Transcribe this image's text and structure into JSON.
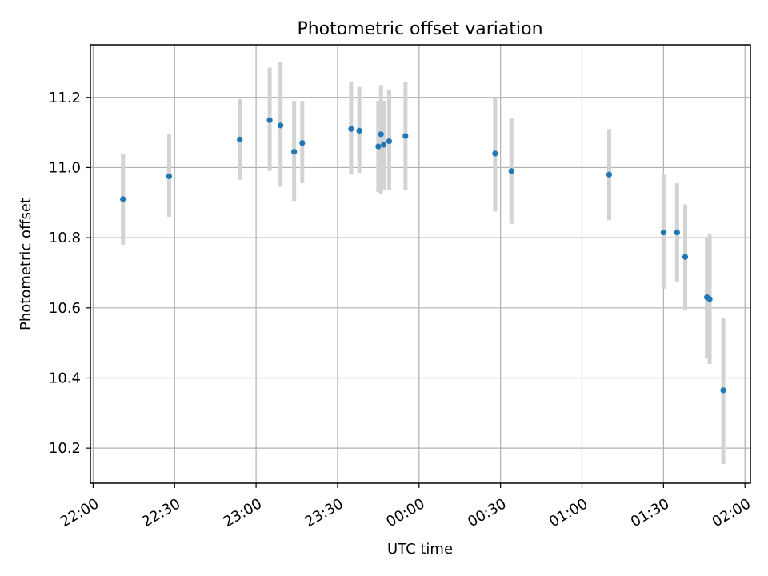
{
  "chart_data": {
    "type": "scatter",
    "title": "Photometric offset variation",
    "xlabel": "UTC time",
    "ylabel": "Photometric offset",
    "x_tick_labels": [
      "22:00",
      "22:30",
      "23:00",
      "23:30",
      "00:00",
      "00:30",
      "01:00",
      "01:30",
      "02:00"
    ],
    "y_tick_labels": [
      "10.2",
      "10.4",
      "10.6",
      "10.8",
      "11.0",
      "11.2"
    ],
    "xlim": [
      "21:59",
      "02:02"
    ],
    "ylim": [
      10.1,
      11.35
    ],
    "grid": true,
    "marker_color": "#1f77b4",
    "errorbar_color": "#d3d3d3",
    "series": [
      {
        "points": [
          {
            "x": "22:11",
            "y": 10.91,
            "err_low": 10.78,
            "err_high": 11.04
          },
          {
            "x": "22:28",
            "y": 10.975,
            "err_low": 10.86,
            "err_high": 11.095
          },
          {
            "x": "22:54",
            "y": 11.08,
            "err_low": 10.965,
            "err_high": 11.195
          },
          {
            "x": "23:05",
            "y": 11.135,
            "err_low": 10.99,
            "err_high": 11.285
          },
          {
            "x": "23:09",
            "y": 11.12,
            "err_low": 10.945,
            "err_high": 11.3
          },
          {
            "x": "23:14",
            "y": 11.045,
            "err_low": 10.905,
            "err_high": 11.19
          },
          {
            "x": "23:17",
            "y": 11.07,
            "err_low": 10.955,
            "err_high": 11.19
          },
          {
            "x": "23:35",
            "y": 11.11,
            "err_low": 10.98,
            "err_high": 11.245
          },
          {
            "x": "23:38",
            "y": 11.105,
            "err_low": 10.985,
            "err_high": 11.23
          },
          {
            "x": "23:45",
            "y": 11.06,
            "err_low": 10.93,
            "err_high": 11.19
          },
          {
            "x": "23:46",
            "y": 11.095,
            "err_low": 10.925,
            "err_high": 11.235
          },
          {
            "x": "23:47",
            "y": 11.065,
            "err_low": 10.935,
            "err_high": 11.19
          },
          {
            "x": "23:49",
            "y": 11.075,
            "err_low": 10.935,
            "err_high": 11.22
          },
          {
            "x": "23:55",
            "y": 11.09,
            "err_low": 10.935,
            "err_high": 11.245
          },
          {
            "x": "00:28",
            "y": 11.04,
            "err_low": 10.875,
            "err_high": 11.2
          },
          {
            "x": "00:34",
            "y": 10.99,
            "err_low": 10.84,
            "err_high": 11.14
          },
          {
            "x": "01:10",
            "y": 10.98,
            "err_low": 10.85,
            "err_high": 11.11
          },
          {
            "x": "01:30",
            "y": 10.815,
            "err_low": 10.655,
            "err_high": 10.98
          },
          {
            "x": "01:35",
            "y": 10.815,
            "err_low": 10.675,
            "err_high": 10.955
          },
          {
            "x": "01:38",
            "y": 10.745,
            "err_low": 10.595,
            "err_high": 10.895
          },
          {
            "x": "01:46",
            "y": 10.63,
            "err_low": 10.455,
            "err_high": 10.8
          },
          {
            "x": "01:47",
            "y": 10.625,
            "err_low": 10.44,
            "err_high": 10.81
          },
          {
            "x": "01:52",
            "y": 10.365,
            "err_low": 10.155,
            "err_high": 10.57
          }
        ]
      }
    ]
  }
}
